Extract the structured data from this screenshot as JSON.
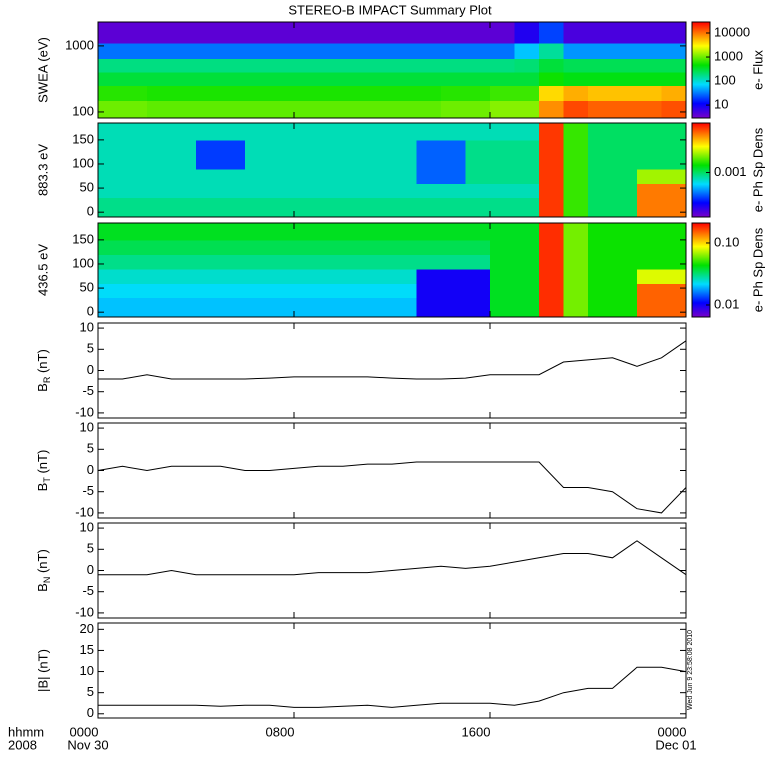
{
  "title": "STEREO-B IMPACT Summary Plot",
  "xaxis": {
    "lim": [
      0,
      24
    ],
    "ticks": [
      {
        "value": 0,
        "label": "0000"
      },
      {
        "value": 8,
        "label": "0800"
      },
      {
        "value": 16,
        "label": "1600"
      },
      {
        "value": 24,
        "label": "0000"
      }
    ],
    "date_labels": [
      {
        "value": 0,
        "label": "Nov 30"
      },
      {
        "value": 24,
        "label": "Dec 01"
      }
    ],
    "row_labels": [
      "hhmm",
      "2008"
    ]
  },
  "timestamp": "Wed Jun  9 23:58:08 2010",
  "chart_data": [
    {
      "type": "heatmap",
      "ylabel": "SWEA (eV)",
      "log_y": true,
      "ylim": [
        81,
        2300
      ],
      "yticks": [
        100,
        1000
      ],
      "x_edges": [
        0,
        1,
        2,
        3,
        4,
        5,
        6,
        7,
        8,
        9,
        10,
        11,
        12,
        13,
        14,
        15,
        16,
        17,
        18,
        19,
        20,
        21,
        22,
        23,
        24
      ],
      "y_edges": [
        81,
        150,
        250,
        400,
        650,
        1100,
        2300
      ],
      "z": [
        [
          1000,
          1000,
          900,
          900,
          900,
          900,
          900,
          900,
          900,
          900,
          900,
          900,
          900,
          900,
          1000,
          1000,
          1200,
          1200,
          8000,
          15000,
          12000,
          12000,
          12000,
          14000
        ],
        [
          600,
          600,
          550,
          550,
          550,
          550,
          550,
          550,
          550,
          550,
          550,
          550,
          550,
          550,
          600,
          600,
          700,
          700,
          4000,
          6000,
          5000,
          5000,
          5000,
          6000
        ],
        [
          300,
          300,
          300,
          300,
          300,
          300,
          300,
          300,
          300,
          300,
          300,
          300,
          300,
          300,
          300,
          300,
          300,
          300,
          500,
          400,
          400,
          400,
          400,
          400
        ],
        [
          180,
          180,
          180,
          180,
          180,
          180,
          180,
          180,
          180,
          180,
          180,
          180,
          180,
          180,
          180,
          180,
          180,
          200,
          300,
          250,
          250,
          250,
          250,
          250
        ],
        [
          30,
          30,
          30,
          30,
          30,
          30,
          30,
          30,
          30,
          30,
          30,
          30,
          30,
          30,
          30,
          30,
          30,
          60,
          150,
          40,
          40,
          40,
          40,
          40
        ],
        [
          4,
          4,
          4,
          4,
          4,
          4,
          4,
          4,
          4,
          4,
          4,
          4,
          4,
          4,
          4,
          4,
          4,
          8,
          20,
          5,
          5,
          5,
          5,
          5
        ]
      ],
      "colorbar": {
        "label": "e- Flux",
        "lim": [
          2.9,
          28700
        ],
        "ticks": [
          10,
          100,
          1000,
          10000
        ]
      }
    },
    {
      "type": "heatmap",
      "ylabel": "883.3 eV",
      "log_y": false,
      "ylim": [
        -10,
        185
      ],
      "yticks": [
        0,
        50,
        100,
        150
      ],
      "x_edges": [
        0,
        1,
        2,
        3,
        4,
        5,
        6,
        7,
        8,
        9,
        10,
        11,
        12,
        13,
        14,
        15,
        16,
        17,
        18,
        19,
        20,
        21,
        22,
        23,
        24
      ],
      "y_edges": [
        -10,
        30,
        60,
        90,
        120,
        150,
        185
      ],
      "z": [
        [
          0.0009,
          0.0009,
          0.0009,
          0.0009,
          0.0009,
          0.0009,
          0.0009,
          0.0009,
          0.0009,
          0.0009,
          0.0009,
          0.0009,
          0.0009,
          0.0009,
          0.0009,
          0.0009,
          0.0009,
          0.0009,
          0.005,
          0.0015,
          0.001,
          0.001,
          0.004,
          0.004
        ],
        [
          0.0008,
          0.0008,
          0.0008,
          0.0008,
          0.0008,
          0.0008,
          0.0008,
          0.0008,
          0.0008,
          0.0008,
          0.0008,
          0.0008,
          0.0008,
          0.0008,
          0.0008,
          0.0008,
          0.0008,
          0.0008,
          0.005,
          0.0015,
          0.001,
          0.001,
          0.004,
          0.004
        ],
        [
          0.0008,
          0.0008,
          0.0008,
          0.0008,
          0.0008,
          0.0008,
          0.0008,
          0.0008,
          0.0008,
          0.0008,
          0.0008,
          0.0008,
          0.0008,
          0.00045,
          0.00045,
          0.0009,
          0.0009,
          0.0009,
          0.005,
          0.0015,
          0.001,
          0.001,
          0.002,
          0.002
        ],
        [
          0.0008,
          0.0008,
          0.0008,
          0.0008,
          0.0004,
          0.0004,
          0.0008,
          0.0008,
          0.0008,
          0.0008,
          0.0008,
          0.0008,
          0.0008,
          0.00045,
          0.00045,
          0.0009,
          0.0009,
          0.0009,
          0.005,
          0.0015,
          0.001,
          0.001,
          0.001,
          0.001
        ],
        [
          0.0008,
          0.0008,
          0.0008,
          0.0008,
          0.0004,
          0.0004,
          0.0008,
          0.0008,
          0.0008,
          0.0008,
          0.0008,
          0.0008,
          0.0008,
          0.00045,
          0.00045,
          0.0009,
          0.0009,
          0.0009,
          0.005,
          0.0015,
          0.001,
          0.001,
          0.001,
          0.001
        ],
        [
          0.0008,
          0.0008,
          0.0008,
          0.0008,
          0.0008,
          0.0008,
          0.0008,
          0.0008,
          0.0008,
          0.0008,
          0.0008,
          0.0008,
          0.0008,
          0.0008,
          0.0008,
          0.0008,
          0.0008,
          0.0008,
          0.005,
          0.0015,
          0.001,
          0.001,
          0.001,
          0.001
        ]
      ],
      "colorbar": {
        "label": "e- Ph Sp Dens",
        "lim": [
          0.0002,
          0.006
        ],
        "ticks": [
          0.001
        ]
      }
    },
    {
      "type": "heatmap",
      "ylabel": "436.5 eV",
      "log_y": false,
      "ylim": [
        -10,
        185
      ],
      "yticks": [
        0,
        50,
        100,
        150
      ],
      "x_edges": [
        0,
        1,
        2,
        3,
        4,
        5,
        6,
        7,
        8,
        9,
        10,
        11,
        12,
        13,
        14,
        15,
        16,
        17,
        18,
        19,
        20,
        21,
        22,
        23,
        24
      ],
      "y_edges": [
        -10,
        30,
        60,
        90,
        120,
        150,
        185
      ],
      "z": [
        [
          0.02,
          0.02,
          0.02,
          0.02,
          0.02,
          0.02,
          0.02,
          0.02,
          0.02,
          0.02,
          0.02,
          0.02,
          0.02,
          0.01,
          0.01,
          0.01,
          0.04,
          0.04,
          0.18,
          0.06,
          0.045,
          0.045,
          0.15,
          0.15
        ],
        [
          0.022,
          0.022,
          0.022,
          0.022,
          0.022,
          0.022,
          0.022,
          0.022,
          0.022,
          0.022,
          0.022,
          0.022,
          0.022,
          0.01,
          0.01,
          0.01,
          0.04,
          0.04,
          0.18,
          0.06,
          0.045,
          0.045,
          0.15,
          0.15
        ],
        [
          0.025,
          0.025,
          0.025,
          0.025,
          0.025,
          0.025,
          0.025,
          0.025,
          0.025,
          0.025,
          0.025,
          0.025,
          0.025,
          0.01,
          0.01,
          0.01,
          0.04,
          0.04,
          0.18,
          0.06,
          0.045,
          0.045,
          0.08,
          0.08
        ],
        [
          0.03,
          0.03,
          0.03,
          0.03,
          0.03,
          0.03,
          0.03,
          0.03,
          0.03,
          0.03,
          0.03,
          0.03,
          0.03,
          0.03,
          0.03,
          0.03,
          0.04,
          0.04,
          0.18,
          0.06,
          0.045,
          0.045,
          0.045,
          0.045
        ],
        [
          0.035,
          0.035,
          0.035,
          0.035,
          0.035,
          0.035,
          0.035,
          0.035,
          0.035,
          0.035,
          0.035,
          0.035,
          0.035,
          0.035,
          0.035,
          0.035,
          0.04,
          0.04,
          0.18,
          0.06,
          0.045,
          0.045,
          0.045,
          0.045
        ],
        [
          0.04,
          0.04,
          0.04,
          0.04,
          0.04,
          0.04,
          0.04,
          0.04,
          0.04,
          0.04,
          0.04,
          0.04,
          0.04,
          0.04,
          0.04,
          0.04,
          0.04,
          0.04,
          0.18,
          0.06,
          0.045,
          0.045,
          0.045,
          0.045
        ]
      ],
      "colorbar": {
        "label": "e- Ph Sp Dens",
        "lim": [
          0.0064,
          0.21
        ],
        "ticks": [
          {
            "value": 0.1,
            "label": "0.10"
          },
          0.01
        ]
      }
    },
    {
      "type": "line",
      "ylabel": {
        "main": "B",
        "sub": "R",
        "unit": " (nT)"
      },
      "color": "#000000",
      "ylim": [
        -11.2,
        11.2
      ],
      "yticks": [
        -10,
        -5,
        0,
        5,
        10
      ],
      "x": [
        0,
        1,
        2,
        3,
        4,
        5,
        6,
        7,
        8,
        9,
        10,
        11,
        12,
        13,
        14,
        15,
        16,
        17,
        18,
        19,
        20,
        21,
        22,
        23,
        24
      ],
      "values": [
        -2,
        -2,
        -1,
        -2,
        -2,
        -2,
        -2,
        -1.8,
        -1.5,
        -1.5,
        -1.5,
        -1.5,
        -1.8,
        -2,
        -2,
        -1.8,
        -1,
        -1,
        -1,
        2,
        2.5,
        3,
        1,
        3,
        7
      ]
    },
    {
      "type": "line",
      "ylabel": {
        "main": "B",
        "sub": "T",
        "unit": " (nT)"
      },
      "color": "#000000",
      "ylim": [
        -11.2,
        11.2
      ],
      "yticks": [
        -10,
        -5,
        0,
        5,
        10
      ],
      "x": [
        0,
        1,
        2,
        3,
        4,
        5,
        6,
        7,
        8,
        9,
        10,
        11,
        12,
        13,
        14,
        15,
        16,
        17,
        18,
        19,
        20,
        21,
        22,
        23,
        24
      ],
      "values": [
        0,
        1,
        0,
        1,
        1,
        1,
        0,
        0,
        0.5,
        1,
        1,
        1.5,
        1.5,
        2,
        2,
        2,
        2,
        2,
        2,
        -4,
        -4,
        -5,
        -9,
        -10,
        -4
      ]
    },
    {
      "type": "line",
      "ylabel": {
        "main": "B",
        "sub": "N",
        "unit": " (nT)"
      },
      "color": "#000000",
      "ylim": [
        -11.2,
        11.2
      ],
      "yticks": [
        -10,
        -5,
        0,
        5,
        10
      ],
      "x": [
        0,
        1,
        2,
        3,
        4,
        5,
        6,
        7,
        8,
        9,
        10,
        11,
        12,
        13,
        14,
        15,
        16,
        17,
        18,
        19,
        20,
        21,
        22,
        23,
        24
      ],
      "values": [
        -1,
        -1,
        -1,
        0,
        -1,
        -1,
        -1,
        -1,
        -1,
        -0.5,
        -0.5,
        -0.5,
        0,
        0.5,
        1,
        0.5,
        1,
        2,
        3,
        4,
        4,
        3,
        7,
        3,
        -1
      ]
    },
    {
      "type": "line",
      "ylabel": "|B| (nT)",
      "color": "#000000",
      "ylim": [
        -1,
        21.5
      ],
      "yticks": [
        0,
        5,
        10,
        15,
        20
      ],
      "x": [
        0,
        1,
        2,
        3,
        4,
        5,
        6,
        7,
        8,
        9,
        10,
        11,
        12,
        13,
        14,
        15,
        16,
        17,
        18,
        19,
        20,
        21,
        22,
        23,
        24
      ],
      "values": [
        2,
        2,
        2,
        2,
        2,
        1.8,
        2,
        2,
        1.5,
        1.5,
        1.8,
        2,
        1.5,
        2,
        2.5,
        2.5,
        2.5,
        2,
        3,
        5,
        6,
        6,
        11,
        11,
        10
      ]
    }
  ]
}
